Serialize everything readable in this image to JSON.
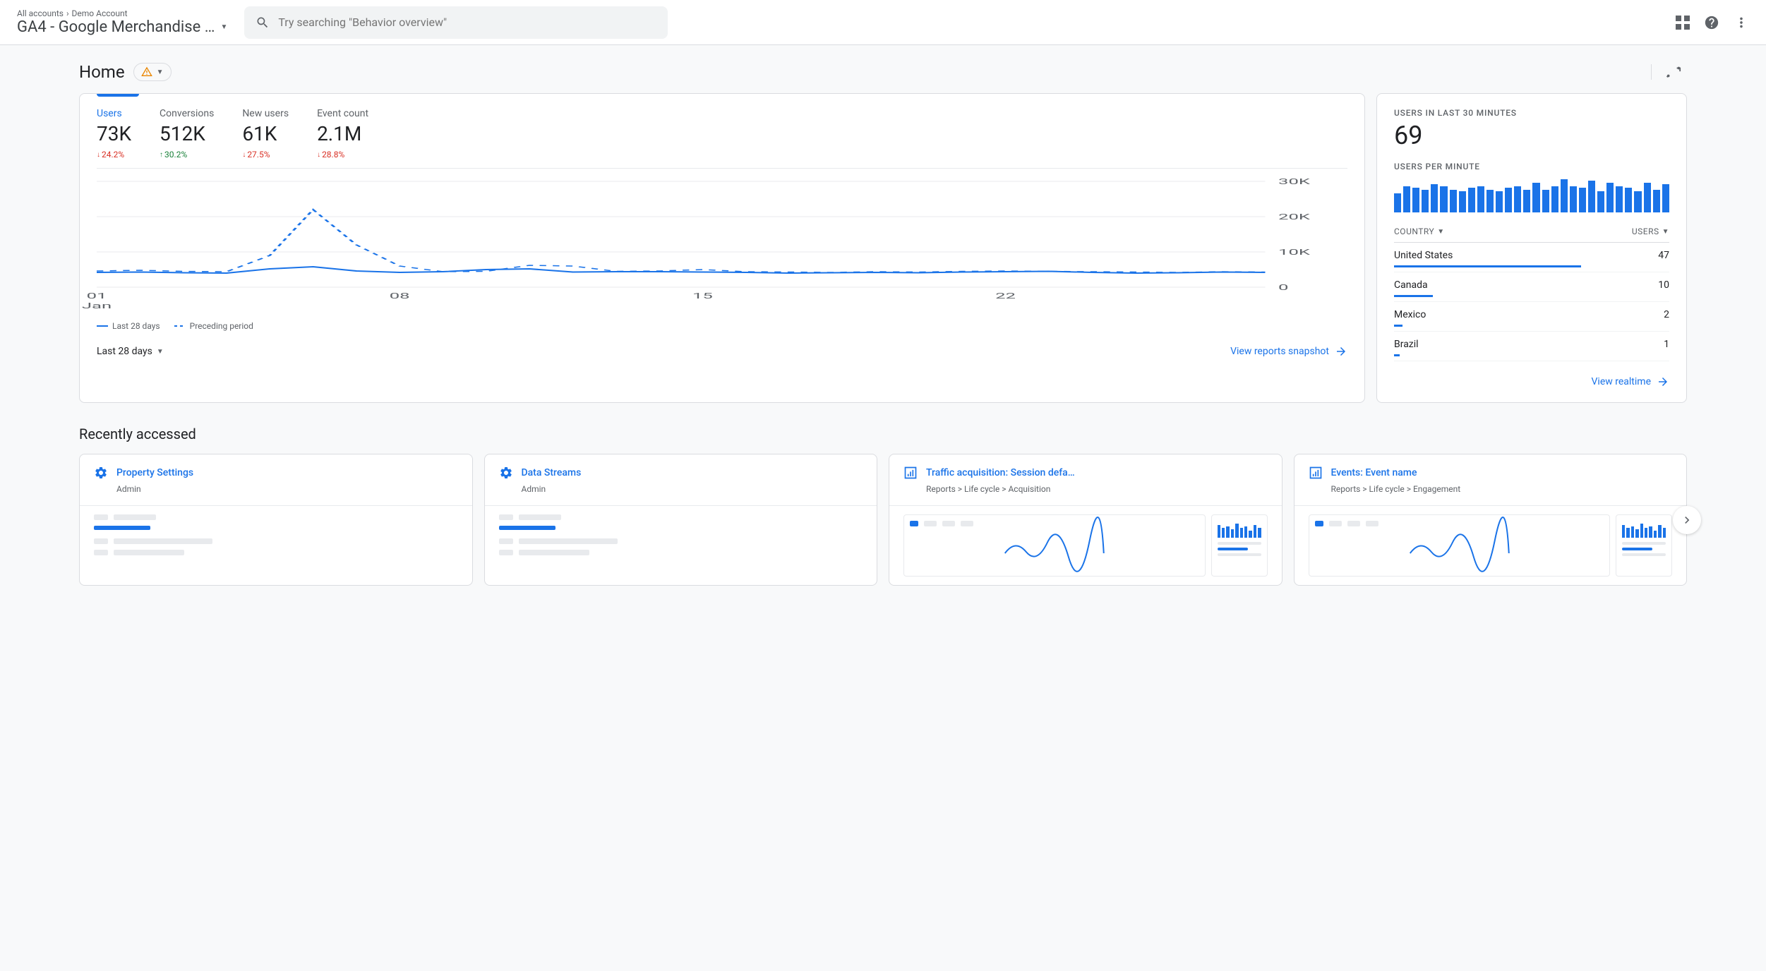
{
  "header": {
    "breadcrumb_root": "All accounts",
    "breadcrumb_account": "Demo Account",
    "property_name": "GA4 - Google Merchandise …",
    "search_placeholder": "Try searching \"Behavior overview\""
  },
  "page": {
    "title": "Home"
  },
  "stats": [
    {
      "label": "Users",
      "value": "73K",
      "change": "24.2%",
      "direction": "down",
      "active": true
    },
    {
      "label": "Conversions",
      "value": "512K",
      "change": "30.2%",
      "direction": "up",
      "active": false
    },
    {
      "label": "New users",
      "value": "61K",
      "change": "27.5%",
      "direction": "down",
      "active": false
    },
    {
      "label": "Event count",
      "value": "2.1M",
      "change": "28.8%",
      "direction": "down",
      "active": false
    }
  ],
  "main_chart": {
    "y_ticks": [
      "30K",
      "20K",
      "10K",
      "0"
    ],
    "ylim": [
      0,
      30000
    ],
    "x_ticks": [
      {
        "top": "01",
        "bottom": "Jan"
      },
      {
        "top": "08",
        "bottom": ""
      },
      {
        "top": "15",
        "bottom": ""
      },
      {
        "top": "22",
        "bottom": ""
      }
    ],
    "grid_color": "#e8eaed",
    "current": {
      "color": "#1a73e8",
      "width": 2,
      "style": "solid",
      "points": [
        4200,
        4300,
        4100,
        4000,
        5200,
        5800,
        4600,
        4200,
        4400,
        5000,
        5200,
        4300,
        4400,
        4400,
        4300,
        4200,
        4000,
        4100,
        4200,
        4100,
        4300,
        4400,
        4500,
        4200,
        4000,
        4100,
        4300,
        4200
      ]
    },
    "previous": {
      "color": "#1a73e8",
      "width": 1.5,
      "style": "dash",
      "points": [
        4600,
        4800,
        4500,
        4400,
        9000,
        22000,
        12000,
        6000,
        4400,
        4500,
        6200,
        6000,
        4500,
        4600,
        5000,
        4400,
        4300,
        4200,
        4400,
        4300,
        4500,
        4600,
        4500,
        4400,
        4300,
        4200,
        4400,
        4300
      ]
    },
    "legend_current": "Last 28 days",
    "legend_previous": "Preceding period",
    "date_range_label": "Last 28 days",
    "footer_link": "View reports snapshot"
  },
  "realtime": {
    "header": "USERS IN LAST 30 MINUTES",
    "value": "69",
    "subheader": "USERS PER MINUTE",
    "bar_color": "#1a73e8",
    "bars": [
      22,
      30,
      28,
      26,
      32,
      30,
      26,
      24,
      28,
      30,
      26,
      24,
      28,
      30,
      26,
      34,
      26,
      30,
      38,
      30,
      28,
      36,
      24,
      34,
      30,
      28,
      24,
      34,
      26,
      32
    ],
    "bar_max": 40,
    "col_country": "COUNTRY",
    "col_users": "USERS",
    "rows": [
      {
        "country": "United States",
        "users": "47",
        "pct": 68
      },
      {
        "country": "Canada",
        "users": "10",
        "pct": 14
      },
      {
        "country": "Mexico",
        "users": "2",
        "pct": 3
      },
      {
        "country": "Brazil",
        "users": "1",
        "pct": 2
      }
    ],
    "footer_link": "View realtime"
  },
  "recent": {
    "title": "Recently accessed",
    "cards": [
      {
        "icon": "gear",
        "title": "Property Settings",
        "sub": "Admin"
      },
      {
        "icon": "gear",
        "title": "Data Streams",
        "sub": "Admin"
      },
      {
        "icon": "chart",
        "title": "Traffic acquisition: Session defa…",
        "sub": "Reports > Life cycle > Acquisition"
      },
      {
        "icon": "chart",
        "title": "Events: Event name",
        "sub": "Reports > Life cycle > Engagement"
      }
    ]
  },
  "colors": {
    "primary": "#1a73e8",
    "text": "#202124",
    "text_secondary": "#5f6368",
    "border": "#dadce0",
    "bg": "#f8f9fa",
    "positive": "#188038",
    "negative": "#d93025"
  }
}
